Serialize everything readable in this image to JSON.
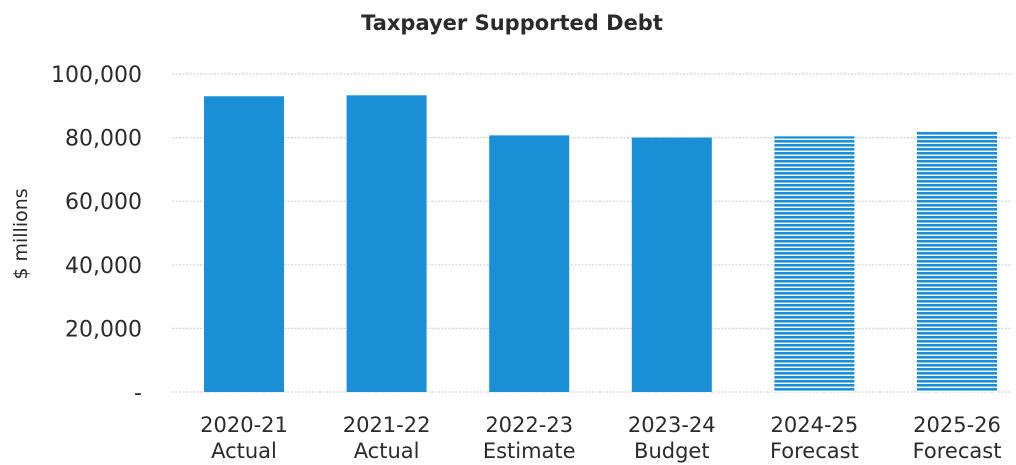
{
  "chart_data": {
    "type": "bar",
    "title": "Taxpayer Supported Debt",
    "ylabel": "$ millions",
    "xlabel": "",
    "ylim": [
      0,
      100000
    ],
    "yticks": [
      {
        "value": 0,
        "label": "-"
      },
      {
        "value": 20000,
        "label": "20,000"
      },
      {
        "value": 40000,
        "label": "40,000"
      },
      {
        "value": 60000,
        "label": "60,000"
      },
      {
        "value": 80000,
        "label": "80,000"
      },
      {
        "value": 100000,
        "label": "100,000"
      }
    ],
    "categories": [
      [
        "2020-21",
        "Actual"
      ],
      [
        "2021-22",
        "Actual"
      ],
      [
        "2022-23",
        "Estimate"
      ],
      [
        "2023-24",
        "Budget"
      ],
      [
        "2024-25",
        "Forecast"
      ],
      [
        "2025-26",
        "Forecast"
      ]
    ],
    "values": [
      93000,
      93300,
      80700,
      80000,
      80400,
      81900
    ],
    "bar_style": [
      "solid",
      "solid",
      "solid",
      "solid",
      "striped",
      "striped"
    ],
    "grid": true,
    "legend": "none",
    "colors": {
      "bar": "#1b8fd6",
      "stripe_bg": "#ffffff",
      "grid": "#d4d4d4",
      "text": "#2b2b2b"
    }
  }
}
